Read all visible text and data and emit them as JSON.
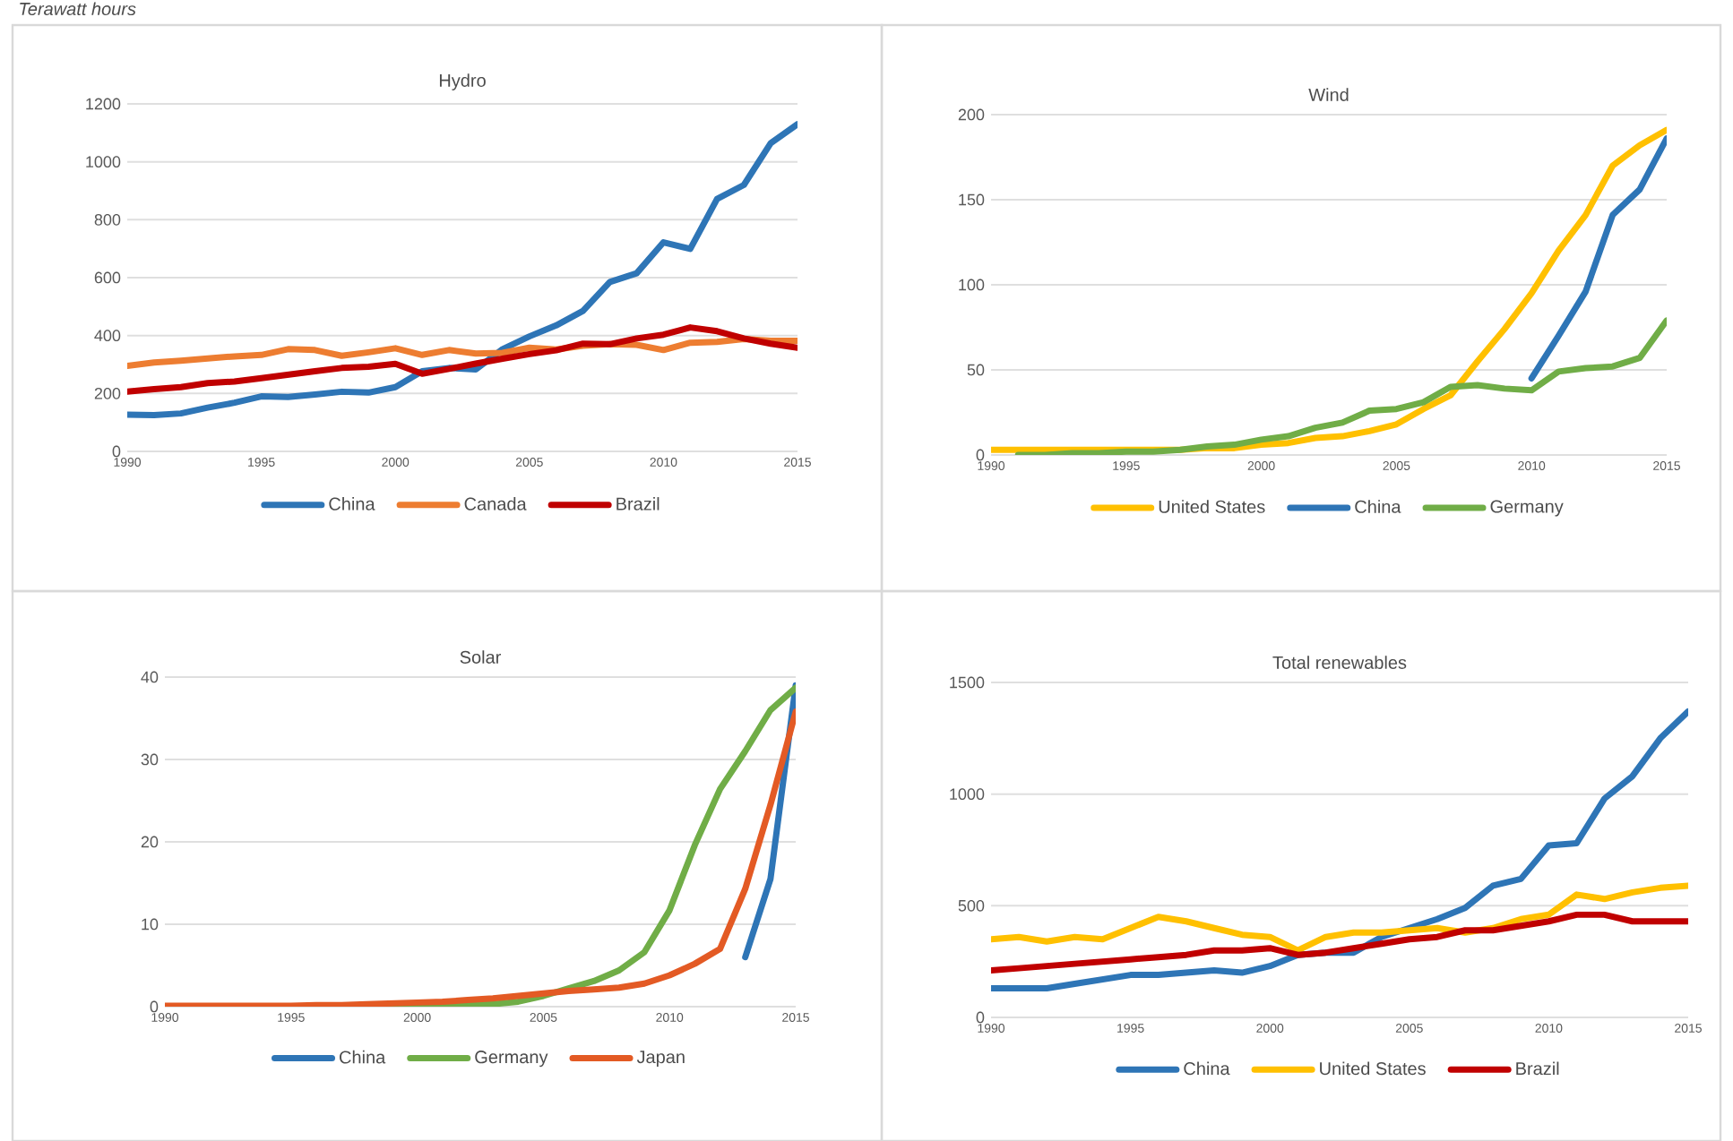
{
  "chart_data": [
    {
      "type": "line",
      "title": "Hydro",
      "annotations": [
        "Terawatt hours"
      ],
      "x": [
        1990,
        1991,
        1992,
        1993,
        1994,
        1995,
        1996,
        1997,
        1998,
        1999,
        2000,
        2001,
        2002,
        2003,
        2004,
        2005,
        2006,
        2007,
        2008,
        2009,
        2010,
        2011,
        2012,
        2013,
        2014,
        2015
      ],
      "xlim": [
        1990,
        2015
      ],
      "xticks": [
        1990,
        1995,
        2000,
        2005,
        2010,
        2015
      ],
      "ylim": [
        0,
        1200
      ],
      "yticks": [
        0,
        200,
        400,
        600,
        800,
        1000,
        1200
      ],
      "grid": "y",
      "legend": "bottom",
      "line_style": "solid",
      "series": [
        {
          "name": "China",
          "color": "#2e75b6",
          "values": [
            127,
            125,
            131,
            151,
            168,
            190,
            188,
            196,
            206,
            203,
            222,
            277,
            288,
            283,
            353,
            397,
            435,
            485,
            585,
            615,
            722,
            699,
            872,
            920,
            1064,
            1130
          ]
        },
        {
          "name": "Canada",
          "color": "#ed7d31",
          "values": [
            295,
            307,
            313,
            321,
            328,
            333,
            353,
            350,
            330,
            342,
            356,
            333,
            350,
            338,
            340,
            358,
            352,
            365,
            370,
            368,
            350,
            375,
            378,
            388,
            382,
            382
          ]
        },
        {
          "name": "Brazil",
          "color": "#c00000",
          "values": [
            206,
            215,
            222,
            236,
            241,
            253,
            265,
            277,
            288,
            292,
            302,
            268,
            285,
            303,
            320,
            336,
            349,
            372,
            370,
            390,
            403,
            428,
            415,
            390,
            372,
            358
          ]
        }
      ]
    },
    {
      "type": "line",
      "title": "Wind",
      "x": [
        1990,
        1991,
        1992,
        1993,
        1994,
        1995,
        1996,
        1997,
        1998,
        1999,
        2000,
        2001,
        2002,
        2003,
        2004,
        2005,
        2006,
        2007,
        2008,
        2009,
        2010,
        2011,
        2012,
        2013,
        2014,
        2015
      ],
      "xlim": [
        1990,
        2015
      ],
      "xticks": [
        1990,
        1995,
        2000,
        2005,
        2010,
        2015
      ],
      "ylim": [
        0,
        200
      ],
      "yticks": [
        0,
        50,
        100,
        150,
        200
      ],
      "grid": "y",
      "legend": "bottom",
      "line_style": "solid",
      "series": [
        {
          "name": "United States",
          "color": "#ffc000",
          "values": [
            3,
            3,
            3,
            3,
            3,
            3,
            3,
            3,
            4,
            4,
            6,
            7,
            10,
            11,
            14,
            18,
            27,
            35,
            55,
            74,
            95,
            120,
            141,
            170,
            182,
            191
          ]
        },
        {
          "name": "China",
          "color": "#2e75b6",
          "values": [
            null,
            null,
            null,
            null,
            null,
            null,
            null,
            null,
            null,
            null,
            null,
            null,
            null,
            null,
            null,
            null,
            null,
            null,
            null,
            null,
            45,
            70,
            96,
            141,
            156,
            186
          ]
        },
        {
          "name": "Germany",
          "color": "#70ad47",
          "values": [
            null,
            0,
            0,
            1,
            1,
            2,
            2,
            3,
            5,
            6,
            9,
            11,
            16,
            19,
            26,
            27,
            31,
            40,
            41,
            39,
            38,
            49,
            51,
            52,
            57,
            79
          ]
        }
      ]
    },
    {
      "type": "line",
      "title": "Solar",
      "x": [
        1990,
        1991,
        1992,
        1993,
        1994,
        1995,
        1996,
        1997,
        1998,
        1999,
        2000,
        2001,
        2002,
        2003,
        2004,
        2005,
        2006,
        2007,
        2008,
        2009,
        2010,
        2011,
        2012,
        2013,
        2014,
        2015
      ],
      "xlim": [
        1990,
        2015
      ],
      "xticks": [
        1990,
        1995,
        2000,
        2005,
        2010,
        2015
      ],
      "ylim": [
        0,
        40
      ],
      "yticks": [
        0,
        10,
        20,
        30,
        40
      ],
      "grid": "y",
      "legend": "bottom",
      "line_style": "solid",
      "series": [
        {
          "name": "China",
          "color": "#2e75b6",
          "values": [
            null,
            null,
            null,
            null,
            null,
            null,
            null,
            null,
            null,
            null,
            null,
            null,
            null,
            null,
            null,
            null,
            null,
            null,
            null,
            null,
            null,
            null,
            null,
            6,
            15.5,
            39
          ]
        },
        {
          "name": "Germany",
          "color": "#70ad47",
          "values": [
            null,
            null,
            null,
            null,
            null,
            null,
            null,
            null,
            0,
            0,
            0.1,
            0.1,
            0.2,
            0.3,
            0.6,
            1.3,
            2.2,
            3.1,
            4.4,
            6.6,
            11.7,
            19.6,
            26.4,
            31,
            36,
            38.7
          ]
        },
        {
          "name": "Japan",
          "color": "#e35a24",
          "values": [
            0.1,
            0.1,
            0.1,
            0.1,
            0.1,
            0.1,
            0.2,
            0.2,
            0.3,
            0.4,
            0.5,
            0.6,
            0.8,
            1,
            1.3,
            1.6,
            1.9,
            2.1,
            2.3,
            2.8,
            3.8,
            5.2,
            7,
            14.3,
            24.5,
            35.8
          ]
        }
      ]
    },
    {
      "type": "line",
      "title": "Total renewables",
      "x": [
        1990,
        1991,
        1992,
        1993,
        1994,
        1995,
        1996,
        1997,
        1998,
        1999,
        2000,
        2001,
        2002,
        2003,
        2004,
        2005,
        2006,
        2007,
        2008,
        2009,
        2010,
        2011,
        2012,
        2013,
        2014,
        2015
      ],
      "xlim": [
        1990,
        2015
      ],
      "xticks": [
        1990,
        1995,
        2000,
        2005,
        2010,
        2015
      ],
      "ylim": [
        0,
        1500
      ],
      "yticks": [
        0,
        500,
        1000,
        1500
      ],
      "grid": "y",
      "legend": "bottom",
      "line_style": "solid",
      "series": [
        {
          "name": "China",
          "color": "#2e75b6",
          "values": [
            130,
            130,
            130,
            150,
            170,
            190,
            190,
            200,
            210,
            200,
            230,
            280,
            290,
            290,
            360,
            400,
            440,
            490,
            590,
            620,
            770,
            780,
            980,
            1080,
            1250,
            1370
          ]
        },
        {
          "name": "United States",
          "color": "#ffc000",
          "values": [
            350,
            360,
            340,
            360,
            350,
            400,
            450,
            430,
            400,
            370,
            360,
            300,
            360,
            380,
            380,
            390,
            400,
            380,
            400,
            440,
            460,
            550,
            530,
            560,
            580,
            590
          ]
        },
        {
          "name": "Brazil",
          "color": "#c00000",
          "values": [
            210,
            220,
            230,
            240,
            250,
            260,
            270,
            280,
            300,
            300,
            310,
            280,
            290,
            310,
            330,
            350,
            360,
            390,
            390,
            410,
            430,
            460,
            460,
            430,
            430,
            430
          ]
        }
      ]
    }
  ]
}
